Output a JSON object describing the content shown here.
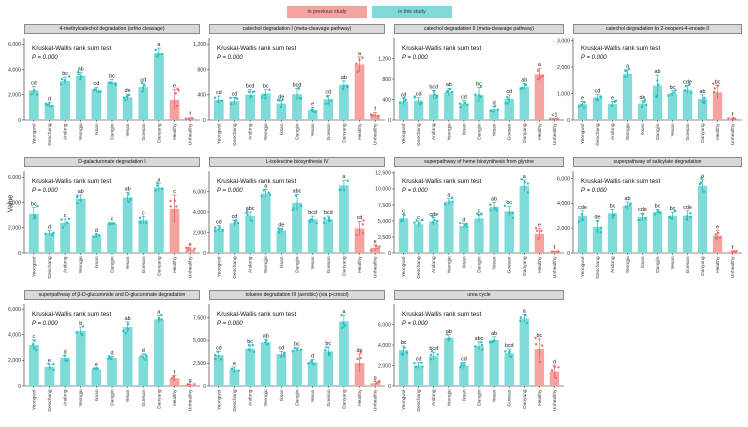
{
  "legend": {
    "items": [
      {
        "label": "in previous study",
        "color": "#f4a3a0"
      },
      {
        "label": "in this study",
        "color": "#7fdbd8"
      }
    ]
  },
  "y_axis_label": "Value",
  "test_label": "Kruskal-Wallis rank sum test",
  "p_label": "P = 0.000",
  "colors": {
    "this_study": "#7fdbd8",
    "previous_study": "#f4a3a0",
    "this_point": "#22c3c0",
    "prev_point": "#ee6f66"
  },
  "chart_data": [
    {
      "type": "bar",
      "title": "4-methylcatechol degradation (ortho cleavage)",
      "categories": [
        "Yeongwol",
        "Geochang",
        "Andong",
        "Yeongju",
        "Iksan",
        "Dangjin",
        "Yesan",
        "Goesan",
        "Danyang",
        "Healthy",
        "Unhealthy"
      ],
      "values": [
        2350,
        1200,
        3100,
        3500,
        2400,
        3000,
        1800,
        2600,
        5300,
        1600,
        100
      ],
      "errors": [
        300,
        200,
        300,
        250,
        200,
        200,
        250,
        300,
        400,
        800,
        80
      ],
      "letters": [
        "cd",
        "d",
        "bc",
        "ab",
        "cd",
        "bc",
        "de",
        "cd",
        "a",
        "e",
        "f"
      ],
      "ylim": [
        0,
        6500
      ],
      "yticks": [
        0,
        2000,
        4000,
        6000
      ]
    },
    {
      "type": "bar",
      "title": "catechol degradation I (meta-cleavage pathway)",
      "categories": [
        "Yeongwol",
        "Geochang",
        "Andong",
        "Yeongju",
        "Iksan",
        "Dangjin",
        "Yesan",
        "Goesan",
        "Danyang",
        "Healthy",
        "Unhealthy"
      ],
      "values": [
        320,
        300,
        400,
        420,
        260,
        410,
        160,
        330,
        560,
        880,
        80
      ],
      "errors": [
        60,
        60,
        80,
        60,
        50,
        90,
        40,
        60,
        60,
        120,
        40
      ],
      "letters": [
        "cd",
        "cd",
        "bcd",
        "bc",
        "de",
        "bcd",
        "e",
        "cd",
        "ab",
        "a",
        "f"
      ],
      "ylim": [
        0,
        1300
      ],
      "yticks": [
        0,
        400,
        800,
        1200
      ]
    },
    {
      "type": "bar",
      "title": "catechol degradation II (meta-cleavage pathway)",
      "categories": [
        "Yeongwol",
        "Geochang",
        "Andong",
        "Yeongju",
        "Iksan",
        "Dangjin",
        "Yesan",
        "Goesan",
        "Danyang",
        "Healthy",
        "Unhealthy"
      ],
      "values": [
        360,
        380,
        500,
        540,
        320,
        490,
        210,
        410,
        650,
        890,
        20
      ],
      "errors": [
        60,
        60,
        80,
        80,
        60,
        140,
        50,
        80,
        60,
        120,
        10
      ],
      "letters": [
        "cd",
        "cd",
        "bcd",
        "ab",
        "cd",
        "bc",
        "d",
        "cd",
        "ab",
        "a",
        "<1"
      ],
      "ylim": [
        0,
        1600
      ],
      "yticks": [
        0,
        400,
        800,
        1200
      ]
    },
    {
      "type": "bar",
      "title": "catechol degradation to 2-oxopent-4-enoate II",
      "categories": [
        "Yeongwol",
        "Geochang",
        "Andong",
        "Yeongju",
        "Iksan",
        "Dangjin",
        "Yesan",
        "Goesan",
        "Danyang",
        "Healthy",
        "Unhealthy"
      ],
      "values": [
        600,
        850,
        600,
        1750,
        620,
        1300,
        1000,
        1150,
        800,
        1050,
        50
      ],
      "errors": [
        100,
        120,
        100,
        150,
        100,
        400,
        100,
        150,
        150,
        250,
        30
      ],
      "letters": [
        "e",
        "cd",
        "e",
        "a",
        "de",
        "ab",
        "bc",
        "cde",
        "ab",
        "bc",
        "f"
      ],
      "ylim": [
        0,
        3100
      ],
      "yticks": [
        0,
        1000,
        2000,
        3000
      ]
    },
    {
      "type": "bar",
      "title": "D-galacturonate degradation I",
      "categories": [
        "Yeongwol",
        "Geochang",
        "Andong",
        "Yeongju",
        "Iksan",
        "Dangjin",
        "Yesan",
        "Goesan",
        "Danyang",
        "Healthy",
        "Unhealthy"
      ],
      "values": [
        3100,
        1600,
        2400,
        4300,
        1400,
        2300,
        4400,
        2600,
        5200,
        3500,
        300
      ],
      "errors": [
        500,
        200,
        300,
        300,
        100,
        100,
        400,
        300,
        300,
        1100,
        100
      ],
      "letters": [
        "bc",
        "d",
        "c",
        "ab",
        "d",
        "c",
        "ab",
        "c",
        "a",
        "c",
        "e"
      ],
      "ylim": [
        0,
        6500
      ],
      "yticks": [
        0,
        2000,
        4000,
        6000
      ]
    },
    {
      "type": "bar",
      "title": "L-isoleucine biosynthesis IV",
      "categories": [
        "Yeongwol",
        "Geochang",
        "Andong",
        "Yeongju",
        "Iksan",
        "Dangjin",
        "Yesan",
        "Goesan",
        "Danyang",
        "Healthy",
        "Unhealthy"
      ],
      "values": [
        2400,
        2900,
        3600,
        5800,
        2200,
        4900,
        3300,
        3300,
        6600,
        2400,
        500
      ],
      "errors": [
        300,
        300,
        400,
        400,
        200,
        800,
        300,
        300,
        500,
        700,
        300
      ],
      "letters": [
        "cd",
        "cd",
        "abc",
        "a",
        "de",
        "abc",
        "bcd",
        "bcd",
        "a",
        "cd",
        "e"
      ],
      "ylim": [
        0,
        8000
      ],
      "yticks": [
        0,
        2000,
        4000,
        6000
      ]
    },
    {
      "type": "bar",
      "title": "superpathway of heme biosynthesis from glycine",
      "categories": [
        "Yeongwol",
        "Geochang",
        "Andong",
        "Yeongju",
        "Iksan",
        "Dangjin",
        "Yesan",
        "Goesan",
        "Danyang",
        "Healthy",
        "Unhealthy"
      ],
      "values": [
        5400,
        4500,
        4900,
        8000,
        4200,
        5400,
        7200,
        6500,
        10500,
        3000,
        200
      ],
      "errors": [
        600,
        500,
        600,
        500,
        400,
        600,
        700,
        800,
        900,
        800,
        100
      ],
      "letters": [
        "c",
        "c",
        "cde",
        "a",
        "d",
        "c",
        "ab",
        "bc",
        "a",
        "e",
        "f"
      ],
      "ylim": [
        0,
        12800
      ],
      "yticks": [
        0,
        2500,
        5000,
        7500,
        10000,
        12500
      ]
    },
    {
      "type": "bar",
      "title": "superpathway of salicylate degradation",
      "categories": [
        "Yeongwol",
        "Geochang",
        "Andong",
        "Yeongju",
        "Iksan",
        "Dangjin",
        "Yesan",
        "Goesan",
        "Danyang",
        "Healthy",
        "Unhealthy"
      ],
      "values": [
        3000,
        2100,
        3200,
        3800,
        2900,
        3300,
        3000,
        3000,
        5400,
        1400,
        100
      ],
      "errors": [
        400,
        500,
        300,
        300,
        300,
        200,
        300,
        400,
        500,
        400,
        80
      ],
      "letters": [
        "cde",
        "de",
        "bc",
        "ab",
        "cde",
        "bc",
        "bc",
        "cde",
        "a",
        "e",
        "f"
      ],
      "ylim": [
        0,
        6600
      ],
      "yticks": [
        0,
        2000,
        4000,
        6000
      ]
    },
    {
      "type": "bar",
      "title": "superpathway of β-D-glucuronide and D-glucuronate degradation",
      "categories": [
        "Yeongwol",
        "Geochang",
        "Andong",
        "Yeongju",
        "Iksan",
        "Dangjin",
        "Yesan",
        "Goesan",
        "Danyang",
        "Healthy",
        "Unhealthy"
      ],
      "values": [
        3200,
        1500,
        2200,
        4300,
        1300,
        2200,
        4600,
        2300,
        5200,
        600,
        100
      ],
      "errors": [
        400,
        200,
        200,
        300,
        100,
        100,
        400,
        200,
        300,
        200,
        50
      ],
      "letters": [
        "c",
        "e",
        "d",
        "b",
        "e",
        "d",
        "ab",
        "d",
        "a",
        "f",
        "g"
      ],
      "ylim": [
        0,
        6400
      ],
      "yticks": [
        0,
        2000,
        4000,
        6000
      ]
    },
    {
      "type": "bar",
      "title": "toluene degradation III (aerobic) (via p-cresol)",
      "categories": [
        "Yeongwol",
        "Geochang",
        "Andong",
        "Yeongju",
        "Iksan",
        "Dangjin",
        "Yesan",
        "Goesan",
        "Danyang",
        "Healthy",
        "Unhealthy"
      ],
      "values": [
        3400,
        1800,
        4100,
        4800,
        3500,
        4000,
        2600,
        3800,
        7100,
        2500,
        300
      ],
      "errors": [
        400,
        300,
        400,
        300,
        300,
        200,
        300,
        500,
        700,
        1000,
        200
      ],
      "letters": [
        "cd",
        "e",
        "bc",
        "ab",
        "cd",
        "bc",
        "d",
        "bc",
        "a",
        "de",
        "g"
      ],
      "ylim": [
        0,
        9000
      ],
      "yticks": [
        0,
        2500,
        5000,
        7500
      ]
    },
    {
      "type": "bar",
      "title": "urea cycle",
      "categories": [
        "Yeongwol",
        "Geochang",
        "Andong",
        "Yeongju",
        "Iksan",
        "Dangjin",
        "Yesan",
        "Goesan",
        "Danyang",
        "Healthy",
        "Unhealthy"
      ],
      "values": [
        3500,
        2000,
        2900,
        4700,
        2000,
        3900,
        4500,
        3200,
        6600,
        3600,
        1400
      ],
      "errors": [
        400,
        300,
        400,
        300,
        300,
        400,
        300,
        400,
        400,
        1000,
        600
      ],
      "letters": [
        "bc",
        "cd",
        "bcd",
        "ab",
        "cd",
        "abc",
        "ab",
        "bcd",
        "a",
        "bc",
        "d"
      ],
      "ylim": [
        0,
        8000
      ],
      "yticks": [
        0,
        2000,
        4000,
        6000
      ]
    }
  ]
}
